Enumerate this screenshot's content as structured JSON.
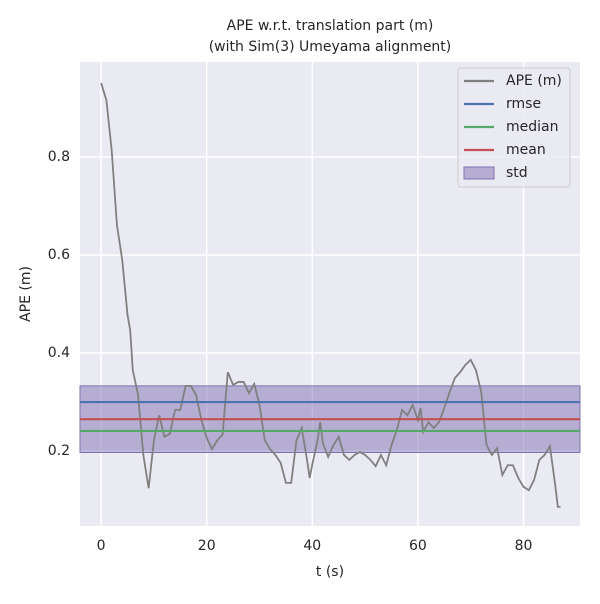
{
  "chart_data": {
    "type": "line",
    "title": "APE w.r.t. translation part (m)",
    "subtitle": "(with Sim(3) Umeyama alignment)",
    "xlabel": "t (s)",
    "ylabel": "APE (m)",
    "x": [
      0,
      1,
      2,
      3,
      4,
      5,
      5.5,
      6,
      7,
      8,
      9,
      10,
      11,
      12,
      13,
      14,
      15,
      16,
      17,
      18,
      19,
      20,
      21,
      22,
      23,
      24,
      25,
      26,
      27,
      28,
      29,
      30,
      31,
      32,
      33,
      34,
      35,
      36,
      37,
      38,
      39,
      39.5,
      40,
      41,
      41.5,
      42,
      43,
      44,
      45,
      46,
      47,
      48,
      49,
      50,
      51,
      52,
      53,
      54,
      55,
      56,
      57,
      58,
      59,
      60,
      60.5,
      61,
      62,
      63,
      64,
      65,
      66,
      67,
      68,
      69,
      70,
      71,
      72,
      73,
      74,
      75,
      76,
      77,
      78,
      79,
      80,
      81,
      82,
      83,
      84,
      85,
      86,
      86.5,
      87
    ],
    "series": [
      {
        "name": "APE (m)",
        "color": "#808080",
        "values": [
          0.951,
          0.916,
          0.814,
          0.661,
          0.59,
          0.478,
          0.447,
          0.365,
          0.314,
          0.192,
          0.124,
          0.222,
          0.273,
          0.229,
          0.235,
          0.284,
          0.284,
          0.333,
          0.333,
          0.314,
          0.263,
          0.227,
          0.204,
          0.222,
          0.233,
          0.361,
          0.335,
          0.341,
          0.341,
          0.318,
          0.337,
          0.294,
          0.222,
          0.204,
          0.192,
          0.176,
          0.135,
          0.135,
          0.222,
          0.247,
          0.182,
          0.145,
          0.173,
          0.222,
          0.259,
          0.216,
          0.188,
          0.212,
          0.229,
          0.192,
          0.182,
          0.192,
          0.198,
          0.192,
          0.182,
          0.169,
          0.192,
          0.171,
          0.212,
          0.243,
          0.284,
          0.273,
          0.294,
          0.263,
          0.288,
          0.239,
          0.259,
          0.247,
          0.259,
          0.288,
          0.32,
          0.349,
          0.361,
          0.376,
          0.386,
          0.365,
          0.32,
          0.212,
          0.192,
          0.206,
          0.151,
          0.171,
          0.171,
          0.145,
          0.127,
          0.12,
          0.141,
          0.182,
          0.192,
          0.21,
          0.131,
          0.086,
          0.086
        ]
      }
    ],
    "hlines": [
      {
        "name": "rmse",
        "color": "#4c72b0",
        "value": 0.3
      },
      {
        "name": "median",
        "color": "#55a868",
        "value": 0.241
      },
      {
        "name": "mean",
        "color": "#c44e52",
        "value": 0.265
      }
    ],
    "band": {
      "name": "std",
      "color": "#8172b2",
      "value": 0.068
    },
    "xlim": [
      -4,
      90.7
    ],
    "ylim": [
      0.047,
      0.994
    ],
    "xticks": [
      0,
      20,
      40,
      60,
      80
    ],
    "yticks": [
      0.2,
      0.4,
      0.6,
      0.8
    ],
    "grid": true,
    "legend": "upper right"
  }
}
